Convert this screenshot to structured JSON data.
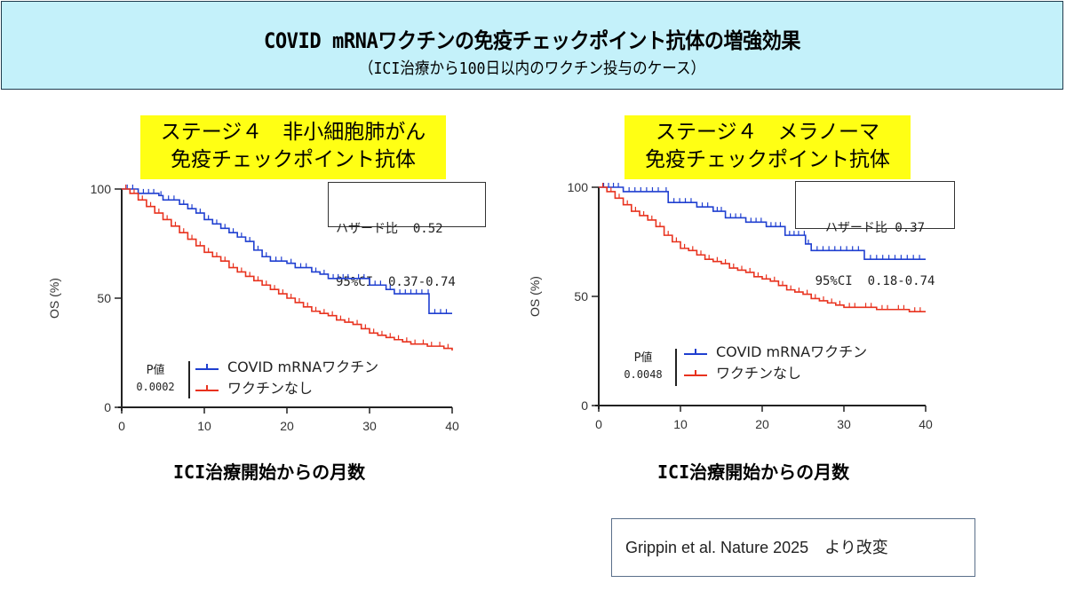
{
  "header": {
    "title": "COVID mRNAワクチンの免疫チェックポイント抗体の増強効果",
    "subtitle": "（ICI治療から100日以内のワクチン投与のケース）"
  },
  "colors": {
    "vaccine": "#1f3fd0",
    "no_vaccine": "#e8321e",
    "header_bg": "#c4f1fa",
    "label_bg": "#ffff14"
  },
  "citation": "Grippin et al. Nature 2025　より改変",
  "chart_data": [
    {
      "type": "line",
      "subtype": "kaplan-meier",
      "title_line1": "ステージ４　非小細胞肺がん",
      "title_line2": "免疫チェックポイント抗体",
      "xlabel": "ICI治療開始からの月数",
      "ylabel": "OS (%)",
      "xlim": [
        0,
        40
      ],
      "ylim": [
        0,
        100
      ],
      "xticks": [
        "0",
        "10",
        "20",
        "30",
        "40"
      ],
      "yticks": [
        "0",
        "50",
        "100"
      ],
      "hazard_ratio_label": "ハザード比  0.52",
      "ci_label": "95%CI  0.37-0.74",
      "p_label": "P値",
      "p_value": "0.0002",
      "legend_position": "bottom-left",
      "series": [
        {
          "name": "COVID mRNAワクチン",
          "key": "vaccine",
          "x": [
            0,
            2,
            4.5,
            5,
            7,
            8,
            9,
            10,
            11,
            12,
            13,
            14,
            15,
            16,
            17,
            18,
            20,
            21,
            23,
            24,
            25,
            28,
            30,
            32,
            33,
            37,
            37.2,
            40
          ],
          "y": [
            100,
            98,
            97,
            95,
            93,
            91,
            89,
            86,
            84,
            82,
            80,
            78,
            76,
            72,
            69,
            67,
            66,
            64,
            62,
            61,
            59,
            59,
            56,
            54,
            52,
            52,
            43,
            43
          ]
        },
        {
          "name": "ワクチンなし",
          "key": "no_vaccine",
          "x": [
            0,
            1,
            2,
            3,
            4,
            5,
            6,
            7,
            8,
            9,
            10,
            11,
            12,
            13,
            14,
            15,
            16,
            17,
            18,
            19,
            20,
            21,
            22,
            23,
            24,
            25,
            26,
            27,
            28,
            29,
            30,
            31,
            32,
            33,
            34,
            35,
            36,
            37,
            38,
            39,
            40
          ],
          "y": [
            100,
            98,
            95,
            92,
            89,
            86,
            83,
            80,
            77,
            74,
            71,
            69,
            67,
            64,
            62,
            60,
            58,
            56,
            54,
            52,
            50,
            48,
            46,
            44,
            43,
            42,
            40,
            39,
            38,
            36,
            34,
            33,
            32,
            31,
            30,
            29,
            29,
            28,
            28,
            27,
            26
          ]
        }
      ]
    },
    {
      "type": "line",
      "subtype": "kaplan-meier",
      "title_line1": "ステージ４　メラノーマ",
      "title_line2": "免疫チェックポイント抗体",
      "xlabel": "ICI治療開始からの月数",
      "ylabel": "OS (%)",
      "xlim": [
        0,
        40
      ],
      "ylim": [
        0,
        100
      ],
      "xticks": [
        "0",
        "10",
        "20",
        "30",
        "40"
      ],
      "yticks": [
        "0",
        "50",
        "100"
      ],
      "hazard_ratio_label": "ハザード比 0.37",
      "ci_label": "95%CI  0.18-0.74",
      "p_label": "P値",
      "p_value": "0.0048",
      "legend_position": "bottom-left",
      "series": [
        {
          "name": "COVID mRNAワクチン",
          "key": "vaccine",
          "x": [
            0,
            3,
            8,
            8.5,
            12,
            14,
            15.5,
            18,
            20.5,
            22.8,
            25,
            25.3,
            26,
            32.5,
            40
          ],
          "y": [
            100,
            98,
            98,
            93,
            91,
            89,
            86,
            84,
            82,
            78,
            78,
            74,
            71,
            67,
            67
          ]
        },
        {
          "name": "ワクチンなし",
          "key": "no_vaccine",
          "x": [
            0,
            1,
            2,
            3,
            4,
            5,
            6,
            7,
            8,
            9,
            10,
            11,
            12,
            13,
            14,
            15,
            16,
            17,
            18,
            19,
            20,
            21,
            22,
            23,
            24,
            25,
            26,
            27,
            28,
            29,
            30,
            32,
            34,
            36,
            38,
            40
          ],
          "y": [
            100,
            98,
            95,
            92,
            89,
            87,
            85,
            82,
            78,
            75,
            72,
            71,
            69,
            67,
            66,
            65,
            63,
            62,
            61,
            59,
            58,
            57,
            55,
            53,
            52,
            51,
            49,
            48,
            47,
            46,
            45,
            45,
            44,
            44,
            43,
            43
          ]
        }
      ]
    }
  ]
}
